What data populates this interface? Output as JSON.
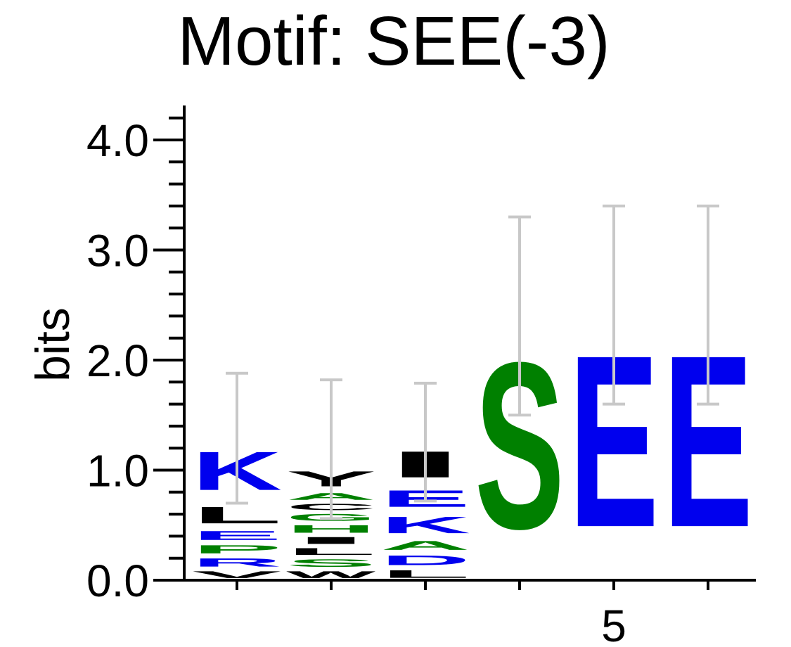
{
  "chart_data": {
    "type": "sequence-logo",
    "title": "Motif: SEE(-3)",
    "ylabel": "bits",
    "ylim": [
      0,
      4.2
    ],
    "yticks": [
      "0.0",
      "1.0",
      "2.0",
      "3.0",
      "4.0"
    ],
    "x_tick_label": "5",
    "x_tick_label_position": 5,
    "colors": {
      "blue": "#0000ee",
      "green": "#008000",
      "black": "#000000",
      "errorbar": "#c8c8c8"
    },
    "positions": [
      {
        "index": 1,
        "letters": [
          {
            "letter": "V",
            "bits": 0.1,
            "color": "black"
          },
          {
            "letter": "R",
            "bits": 0.12,
            "color": "blue"
          },
          {
            "letter": "P",
            "bits": 0.12,
            "color": "green"
          },
          {
            "letter": "E",
            "bits": 0.13,
            "color": "blue"
          },
          {
            "letter": "L",
            "bits": 0.24,
            "color": "black"
          },
          {
            "letter": "K",
            "bits": 0.56,
            "color": "blue"
          }
        ],
        "error": [
          0.7,
          1.88
        ]
      },
      {
        "index": 2,
        "letters": [
          {
            "letter": "W",
            "bits": 0.1,
            "color": "black"
          },
          {
            "letter": "S",
            "bits": 0.11,
            "color": "green"
          },
          {
            "letter": "L",
            "bits": 0.1,
            "color": "black"
          },
          {
            "letter": "I",
            "bits": 0.1,
            "color": "black"
          },
          {
            "letter": "H",
            "bits": 0.11,
            "color": "green"
          },
          {
            "letter": "G",
            "bits": 0.1,
            "color": "green"
          },
          {
            "letter": "C",
            "bits": 0.09,
            "color": "black"
          },
          {
            "letter": "A",
            "bits": 0.1,
            "color": "green"
          },
          {
            "letter": "Y",
            "bits": 0.22,
            "color": "black"
          }
        ],
        "error": [
          0.56,
          1.82
        ]
      },
      {
        "index": 3,
        "letters": [
          {
            "letter": "L",
            "bits": 0.11,
            "color": "black"
          },
          {
            "letter": "D",
            "bits": 0.14,
            "color": "blue"
          },
          {
            "letter": "A",
            "bits": 0.13,
            "color": "green"
          },
          {
            "letter": "K",
            "bits": 0.24,
            "color": "blue"
          },
          {
            "letter": "E",
            "bits": 0.24,
            "color": "blue"
          },
          {
            "letter": "I",
            "bits": 0.38,
            "color": "black"
          }
        ],
        "error": [
          0.72,
          1.79
        ]
      },
      {
        "index": 4,
        "letters": [
          {
            "letter": "S",
            "bits": 2.42,
            "color": "green"
          }
        ],
        "error": [
          1.5,
          3.3
        ]
      },
      {
        "index": 5,
        "letters": [
          {
            "letter": "E",
            "bits": 2.5,
            "color": "blue"
          }
        ],
        "error": [
          1.6,
          3.4
        ]
      },
      {
        "index": 6,
        "letters": [
          {
            "letter": "E",
            "bits": 2.5,
            "color": "blue"
          }
        ],
        "error": [
          1.6,
          3.4
        ]
      }
    ]
  }
}
